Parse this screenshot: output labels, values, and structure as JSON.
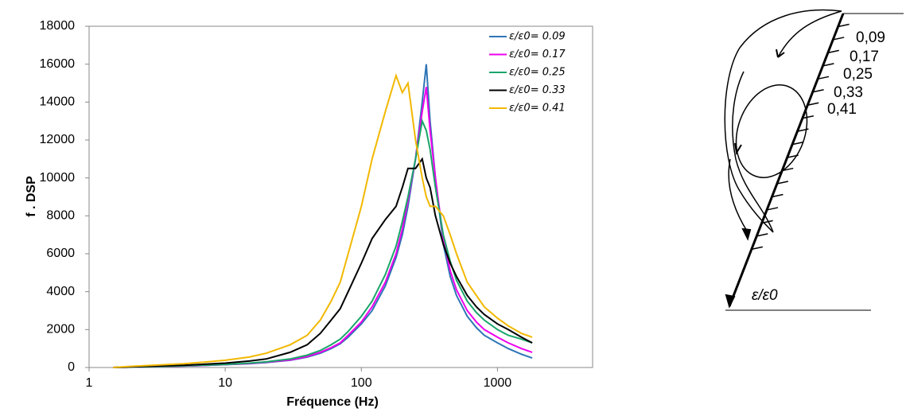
{
  "chart_data": {
    "type": "line",
    "xlabel": "Fréquence (Hz)",
    "ylabel": "f . DSP",
    "xscale": "log",
    "xlim": [
      1,
      5000
    ],
    "xticks": [
      1,
      10,
      100,
      1000
    ],
    "ylim": [
      0,
      18000
    ],
    "yticks": [
      0,
      2000,
      4000,
      6000,
      8000,
      10000,
      12000,
      14000,
      16000,
      18000
    ],
    "grid": false,
    "legend": "upper right",
    "x": [
      1.5,
      2,
      3,
      5,
      7,
      10,
      15,
      20,
      30,
      40,
      50,
      60,
      70,
      80,
      100,
      120,
      150,
      180,
      200,
      220,
      250,
      280,
      300,
      320,
      350,
      400,
      450,
      500,
      600,
      700,
      800,
      1000,
      1200,
      1500,
      1800
    ],
    "series": [
      {
        "name": "ε/ε0= 0.09",
        "color": "#2e75b6",
        "values": [
          0,
          20,
          50,
          80,
          110,
          150,
          200,
          260,
          380,
          550,
          750,
          1000,
          1250,
          1600,
          2300,
          3000,
          4300,
          5800,
          7000,
          8500,
          11000,
          14000,
          16000,
          13000,
          10000,
          6500,
          4800,
          3800,
          2700,
          2100,
          1700,
          1300,
          1000,
          700,
          500
        ]
      },
      {
        "name": "ε/ε0= 0.17",
        "color": "#ee00ee",
        "values": [
          0,
          20,
          50,
          80,
          110,
          150,
          210,
          280,
          400,
          580,
          800,
          1050,
          1300,
          1700,
          2400,
          3200,
          4500,
          6000,
          7300,
          8800,
          11000,
          13500,
          14800,
          12500,
          10000,
          6800,
          5100,
          4100,
          3000,
          2400,
          2000,
          1600,
          1300,
          1000,
          800
        ]
      },
      {
        "name": "ε/ε0= 0.25",
        "color": "#1aa56a",
        "values": [
          0,
          20,
          50,
          90,
          120,
          160,
          230,
          300,
          450,
          650,
          900,
          1200,
          1500,
          1900,
          2700,
          3500,
          4900,
          6400,
          7700,
          9000,
          11000,
          13000,
          12500,
          11500,
          9500,
          7000,
          5600,
          4600,
          3500,
          2900,
          2500,
          2000,
          1700,
          1500,
          1300
        ]
      },
      {
        "name": "ε/ε0= 0.33",
        "color": "#000000",
        "values": [
          0,
          30,
          70,
          120,
          170,
          230,
          340,
          450,
          800,
          1200,
          1800,
          2500,
          3100,
          4000,
          5500,
          6800,
          7800,
          8500,
          9500,
          10500,
          10500,
          11000,
          10000,
          9500,
          8000,
          6500,
          5500,
          4800,
          3800,
          3200,
          2800,
          2300,
          2000,
          1600,
          1300
        ]
      },
      {
        "name": "ε/ε0= 0.41",
        "color": "#f2b800",
        "values": [
          0,
          60,
          120,
          200,
          280,
          380,
          550,
          750,
          1200,
          1700,
          2500,
          3500,
          4500,
          6000,
          8500,
          11000,
          13500,
          15400,
          14500,
          15000,
          12000,
          10000,
          9000,
          8500,
          8500,
          8000,
          7000,
          6000,
          4500,
          3800,
          3200,
          2600,
          2200,
          1800,
          1600
        ]
      }
    ]
  },
  "diagram": {
    "labels": [
      "0,09",
      "0,17",
      "0,25",
      "0,33",
      "0,41"
    ],
    "axis_label": "ε/ε0"
  }
}
